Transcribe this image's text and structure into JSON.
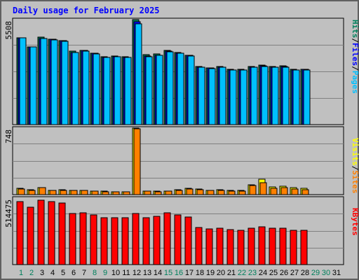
{
  "title": "Daily usage for February 2025",
  "colors": {
    "background": "#c0c0c0",
    "title": "#0000ff",
    "hits": "#00805c",
    "files": "#0000ff",
    "pages": "#00c0ff",
    "visits": "#ffff00",
    "sites": "#ff8000",
    "kbytes": "#ff0000",
    "weekday_label": "#000000",
    "weekend_label": "#00805c"
  },
  "chart_data": [
    {
      "type": "bar",
      "panel": "hits-files-pages",
      "max_label": "5508",
      "ylim": [
        0,
        5508
      ],
      "grid": true,
      "legend": [
        {
          "name": "Pages",
          "color": "#00c0ff"
        },
        {
          "name": "Files",
          "color": "#0000ff"
        },
        {
          "name": "Hits",
          "color": "#00805c"
        }
      ],
      "series": [
        {
          "name": "Hits",
          "values": [
            4560,
            4090,
            4600,
            4470,
            4400,
            3860,
            3900,
            3760,
            3580,
            3600,
            3560,
            5508,
            3660,
            3700,
            3880,
            3800,
            3650,
            3050,
            2990,
            3050,
            2900,
            2900,
            3050,
            3120,
            3050,
            3070,
            2900,
            2900
          ]
        },
        {
          "name": "Files",
          "values": [
            4560,
            4090,
            4520,
            4470,
            4400,
            3800,
            3880,
            3730,
            3530,
            3560,
            3540,
            5380,
            3600,
            3650,
            3840,
            3760,
            3620,
            3020,
            2960,
            3020,
            2880,
            2880,
            3020,
            3080,
            3020,
            3040,
            2880,
            2890
          ]
        },
        {
          "name": "Pages",
          "values": [
            4540,
            4080,
            4500,
            4460,
            4380,
            3790,
            3870,
            3720,
            3520,
            3550,
            3530,
            5300,
            3580,
            3640,
            3830,
            3750,
            3610,
            3000,
            2950,
            3000,
            2870,
            2870,
            3000,
            3060,
            3000,
            3020,
            2870,
            2880
          ]
        }
      ]
    },
    {
      "type": "bar",
      "panel": "visits-sites",
      "max_label": "748",
      "ylim": [
        0,
        748
      ],
      "grid": true,
      "legend": [
        {
          "name": "Sites",
          "color": "#ff8000"
        },
        {
          "name": "Visits",
          "color": "#ffff00"
        }
      ],
      "series": [
        {
          "name": "Visits",
          "values": [
            68,
            52,
            80,
            50,
            52,
            46,
            46,
            42,
            36,
            34,
            30,
            748,
            40,
            36,
            38,
            52,
            70,
            60,
            50,
            52,
            46,
            46,
            112,
            170,
            90,
            96,
            80,
            70
          ]
        },
        {
          "name": "Sites",
          "values": [
            60,
            48,
            76,
            46,
            48,
            44,
            44,
            40,
            34,
            32,
            28,
            740,
            36,
            34,
            36,
            48,
            64,
            56,
            46,
            48,
            42,
            42,
            100,
            130,
            70,
            80,
            66,
            58
          ]
        }
      ]
    },
    {
      "type": "bar",
      "panel": "kbytes",
      "max_label": "514475",
      "ylim": [
        0,
        514475
      ],
      "grid": true,
      "legend": [
        {
          "name": "KBytes",
          "color": "#ff0000"
        }
      ],
      "series": [
        {
          "name": "KBytes",
          "values": [
            490000,
            445000,
            500000,
            488000,
            474000,
            395000,
            403000,
            382000,
            362000,
            362000,
            362000,
            398000,
            365000,
            374000,
            402000,
            387000,
            368000,
            288000,
            276000,
            284000,
            270000,
            264000,
            283000,
            294000,
            280000,
            281000,
            266000,
            266000
          ]
        }
      ]
    }
  ],
  "x_axis": {
    "days": [
      {
        "label": "1",
        "weekend": true
      },
      {
        "label": "2",
        "weekend": true
      },
      {
        "label": "3",
        "weekend": false
      },
      {
        "label": "4",
        "weekend": false
      },
      {
        "label": "5",
        "weekend": false
      },
      {
        "label": "6",
        "weekend": false
      },
      {
        "label": "7",
        "weekend": false
      },
      {
        "label": "8",
        "weekend": true
      },
      {
        "label": "9",
        "weekend": true
      },
      {
        "label": "10",
        "weekend": false
      },
      {
        "label": "11",
        "weekend": false
      },
      {
        "label": "12",
        "weekend": false
      },
      {
        "label": "13",
        "weekend": false
      },
      {
        "label": "14",
        "weekend": false
      },
      {
        "label": "15",
        "weekend": true
      },
      {
        "label": "16",
        "weekend": true
      },
      {
        "label": "17",
        "weekend": false
      },
      {
        "label": "18",
        "weekend": false
      },
      {
        "label": "19",
        "weekend": false
      },
      {
        "label": "20",
        "weekend": false
      },
      {
        "label": "21",
        "weekend": false
      },
      {
        "label": "22",
        "weekend": true
      },
      {
        "label": "23",
        "weekend": true
      },
      {
        "label": "24",
        "weekend": false
      },
      {
        "label": "25",
        "weekend": false
      },
      {
        "label": "26",
        "weekend": false
      },
      {
        "label": "27",
        "weekend": false
      },
      {
        "label": "28",
        "weekend": false
      },
      {
        "label": "29",
        "weekend": true
      },
      {
        "label": "30",
        "weekend": true
      },
      {
        "label": "31",
        "weekend": false
      }
    ]
  }
}
